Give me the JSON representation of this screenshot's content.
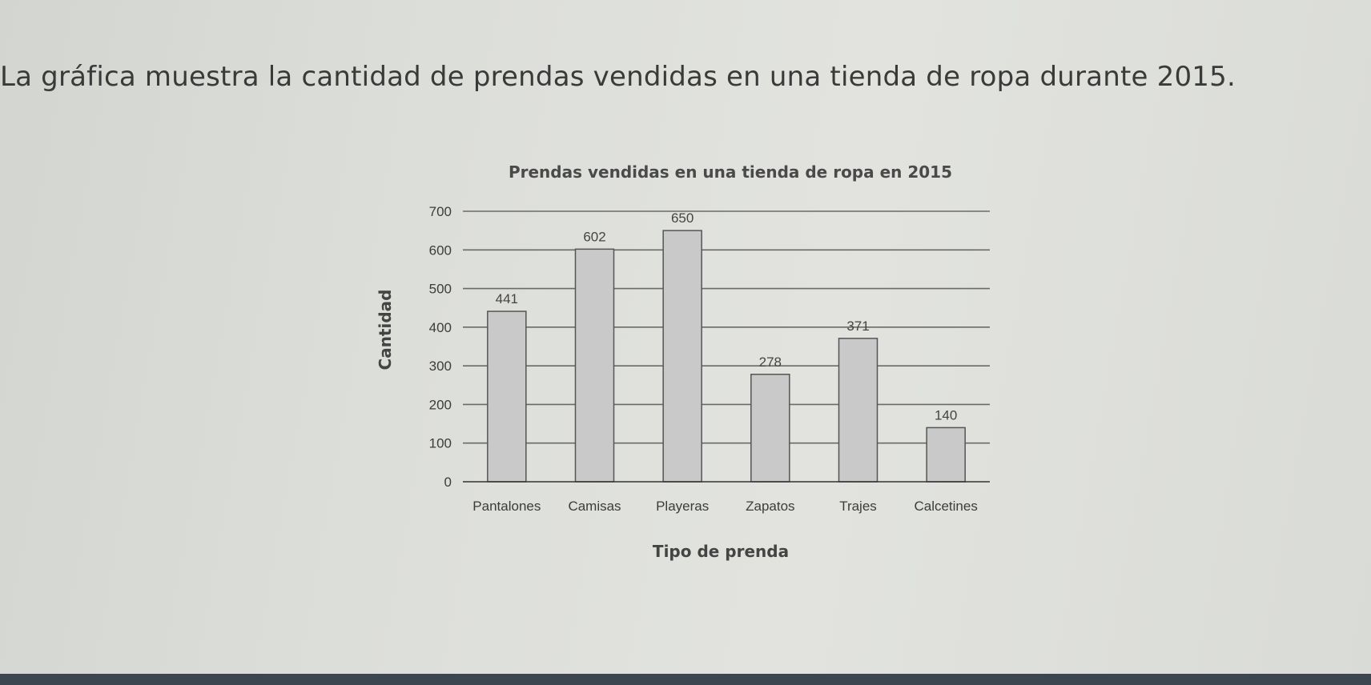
{
  "intro_text": "La gráfica muestra la cantidad de prendas vendidas en una tienda de ropa durante 2015.",
  "chart_data": {
    "type": "bar",
    "title": "Prendas vendidas en una tienda de ropa en 2015",
    "xlabel": "Tipo de prenda",
    "ylabel": "Cantidad",
    "categories": [
      "Pantalones",
      "Camisas",
      "Playeras",
      "Zapatos",
      "Trajes",
      "Calcetines"
    ],
    "values": [
      441,
      602,
      650,
      278,
      371,
      140
    ],
    "ylim": [
      0,
      700
    ],
    "yticks": [
      0,
      100,
      200,
      300,
      400,
      500,
      600,
      700
    ],
    "grid": true,
    "bar_color": "#c9c9c9",
    "bar_stroke": "#555555"
  }
}
